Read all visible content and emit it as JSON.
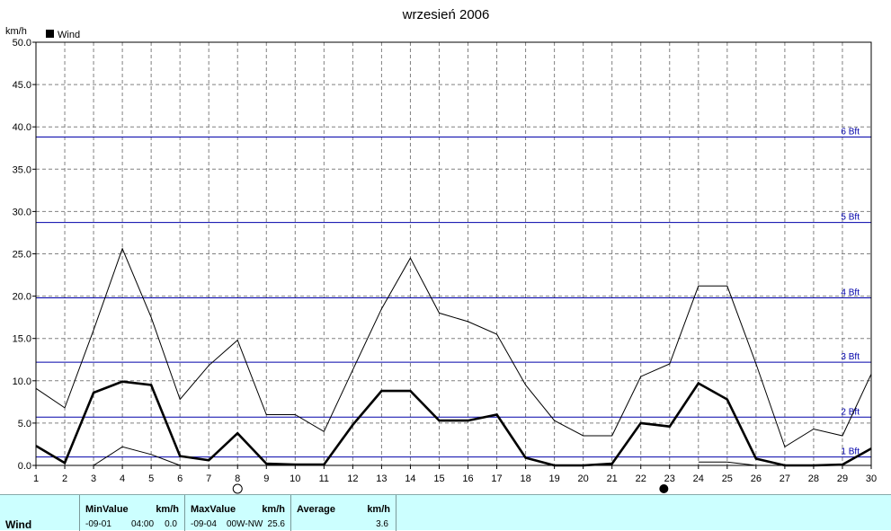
{
  "chart_data": {
    "type": "line",
    "title": "wrzesień 2006",
    "ylabel": "km/h",
    "ylim": [
      0,
      50
    ],
    "yticks": [
      "0.0",
      "5.0",
      "10.0",
      "15.0",
      "20.0",
      "25.0",
      "30.0",
      "35.0",
      "40.0",
      "45.0",
      "50.0"
    ],
    "xticks": [
      "1",
      "2",
      "3",
      "4",
      "5",
      "6",
      "7",
      "8",
      "9",
      "10",
      "11",
      "12",
      "13",
      "14",
      "15",
      "16",
      "17",
      "18",
      "19",
      "20",
      "21",
      "22",
      "23",
      "24",
      "25",
      "26",
      "27",
      "28",
      "29",
      "30"
    ],
    "xlim": [
      1,
      30
    ],
    "legend": {
      "label": "Wind",
      "placement": "top-left"
    },
    "grid": true,
    "beaufort_lines": [
      {
        "label": "1 Bft",
        "value": 1.0
      },
      {
        "label": "2 Bft",
        "value": 5.7
      },
      {
        "label": "3 Bft",
        "value": 12.2
      },
      {
        "label": "4 Bft",
        "value": 19.8
      },
      {
        "label": "5 Bft",
        "value": 28.7
      },
      {
        "label": "6 Bft",
        "value": 38.8
      }
    ],
    "series": [
      {
        "name": "Wind",
        "role": "average",
        "color": "#000000",
        "x": [
          1,
          2,
          3,
          4,
          5,
          6,
          7,
          8,
          9,
          10,
          11,
          12,
          13,
          14,
          15,
          16,
          17,
          18,
          19,
          20,
          21,
          22,
          23,
          24,
          25,
          26,
          27,
          28,
          29,
          30
        ],
        "values": [
          2.3,
          0.3,
          8.6,
          9.9,
          9.5,
          1.1,
          0.6,
          3.8,
          0.2,
          0.1,
          0.1,
          4.8,
          8.8,
          8.8,
          5.3,
          5.3,
          6.0,
          0.9,
          0.0,
          0.0,
          0.2,
          5.0,
          4.6,
          9.7,
          7.8,
          0.8,
          0.0,
          0.0,
          0.1,
          2.0
        ]
      },
      {
        "role": "max",
        "color": "#000000",
        "x": [
          1,
          2,
          3,
          4,
          5,
          6,
          7,
          8,
          9,
          10,
          11,
          12,
          13,
          14,
          15,
          16,
          17,
          18,
          19,
          20,
          21,
          22,
          23,
          24,
          25,
          26,
          27,
          28,
          29,
          30
        ],
        "values": [
          9.1,
          6.8,
          16.0,
          25.6,
          17.5,
          7.8,
          11.8,
          14.8,
          6.0,
          6.0,
          4.0,
          11.3,
          18.5,
          24.5,
          18.0,
          17.0,
          15.5,
          9.5,
          5.3,
          3.5,
          3.5,
          10.5,
          12.0,
          21.2,
          21.2,
          12.0,
          2.2,
          4.3,
          3.5,
          10.8
        ]
      },
      {
        "role": "min",
        "color": "#000000",
        "x": [
          1,
          2,
          3,
          4,
          5,
          6,
          7,
          8,
          9,
          10,
          11,
          12,
          13,
          14,
          15,
          16,
          17,
          18,
          19,
          20,
          21,
          22,
          23,
          24,
          25,
          26,
          27,
          28,
          29,
          30
        ],
        "values": [
          null,
          null,
          0.0,
          2.2,
          1.3,
          0.0,
          null,
          null,
          null,
          null,
          null,
          null,
          null,
          null,
          null,
          null,
          null,
          null,
          null,
          null,
          null,
          null,
          null,
          0.4,
          0.4,
          0.0,
          null,
          null,
          null,
          null
        ]
      }
    ],
    "moon_phases": [
      {
        "day": 8,
        "phase": "full-moon-icon"
      },
      {
        "day": 22.8,
        "phase": "new-moon-icon"
      }
    ],
    "colors": {
      "beaufort": "#0000aa",
      "grid": "#808080",
      "summary_bg": "#ccffff"
    }
  },
  "summary": {
    "row_label": "Wind",
    "min": {
      "header": "MinValue",
      "unit": "km/h",
      "date": "-09-01",
      "time": "04:00",
      "value": "0.0"
    },
    "max": {
      "header": "MaxValue",
      "unit": "km/h",
      "date": "-09-04",
      "dir": "00W-NW",
      "value": "25.6"
    },
    "avg": {
      "header": "Average",
      "unit": "km/h",
      "value": "3.6"
    }
  }
}
